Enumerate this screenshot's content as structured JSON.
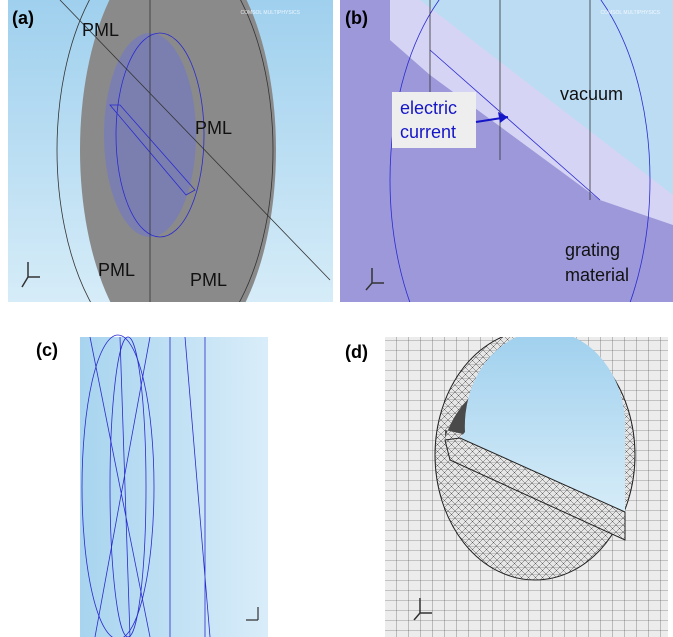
{
  "panels": [
    {
      "label": "(a)",
      "annotations": [
        "PML",
        "PML",
        "PML",
        "PML"
      ],
      "watermark": "COMSOL MULTIPHYSICS"
    },
    {
      "label": "(b)",
      "annotations": {
        "vacuum": "vacuum",
        "electric_current": [
          "electric",
          "current"
        ],
        "grating_material": [
          "grating",
          "material"
        ]
      },
      "watermark": "COMSOL MULTIPHYSICS"
    },
    {
      "label": "(c)"
    },
    {
      "label": "(d)"
    }
  ]
}
